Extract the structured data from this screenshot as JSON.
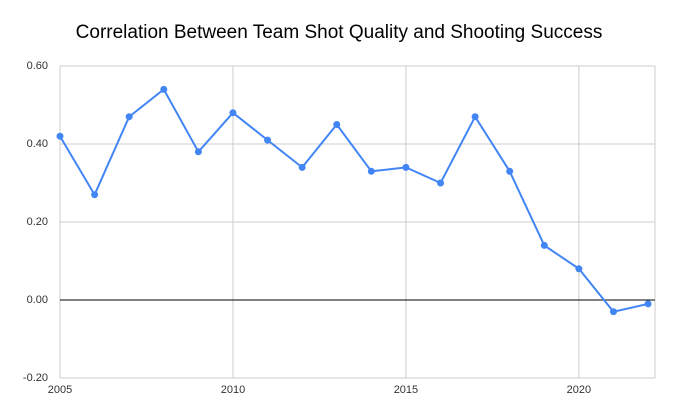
{
  "chart_data": {
    "type": "line",
    "title": "Correlation Between Team Shot Quality and Shooting Success",
    "x": [
      2005,
      2006,
      2007,
      2008,
      2009,
      2010,
      2011,
      2012,
      2013,
      2014,
      2015,
      2016,
      2017,
      2018,
      2019,
      2020,
      2021,
      2022
    ],
    "series": [
      {
        "color": "#4285f4",
        "values": [
          0.42,
          0.27,
          0.47,
          0.54,
          0.38,
          0.48,
          0.41,
          0.34,
          0.45,
          0.33,
          0.34,
          0.3,
          0.47,
          0.33,
          0.14,
          0.08,
          -0.03,
          -0.01
        ]
      }
    ],
    "xlim": [
      2005,
      2022.2
    ],
    "xticks": [
      2005,
      2010,
      2015,
      2020
    ],
    "ylim": [
      -0.2,
      0.6
    ],
    "yticks": [
      {
        "value": -0.2,
        "label": "-0.20"
      },
      {
        "value": 0,
        "label": "0.00"
      },
      {
        "value": 0.2,
        "label": "0.20"
      },
      {
        "value": 0.4,
        "label": "0.40"
      },
      {
        "value": 0.6,
        "label": "0.60"
      }
    ],
    "grid": true
  }
}
